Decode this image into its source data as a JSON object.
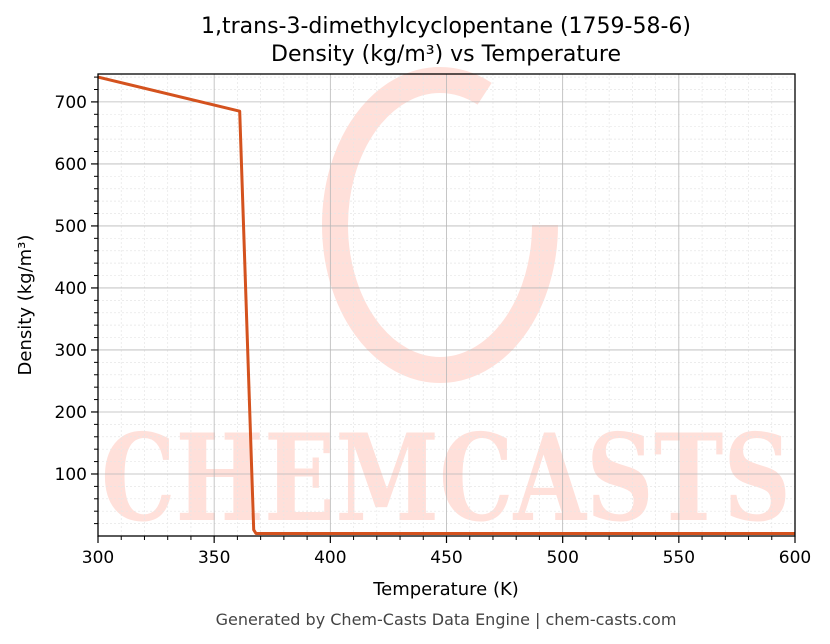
{
  "chart_data": {
    "type": "line",
    "title": "1,trans-3-dimethylcyclopentane (1759-58-6)",
    "subtitle": "Density (kg/m³) vs Temperature",
    "xlabel": "Temperature (K)",
    "ylabel": "Density (kg/m³)",
    "xlim": [
      300,
      600
    ],
    "ylim": [
      0,
      745
    ],
    "x_ticks": [
      300,
      350,
      400,
      450,
      500,
      550,
      600
    ],
    "y_ticks": [
      100,
      200,
      300,
      400,
      500,
      600,
      700
    ],
    "grid": true,
    "series": [
      {
        "color": "#d4521e",
        "x": [
          300,
          361,
          367,
          368,
          600
        ],
        "y": [
          740,
          685,
          10,
          4,
          4
        ]
      }
    ]
  },
  "watermark": {
    "text": "CHEMCASTS",
    "color": "#ffe0da"
  },
  "footer": {
    "text": "Generated by Chem-Casts Data Engine | chem-casts.com"
  }
}
